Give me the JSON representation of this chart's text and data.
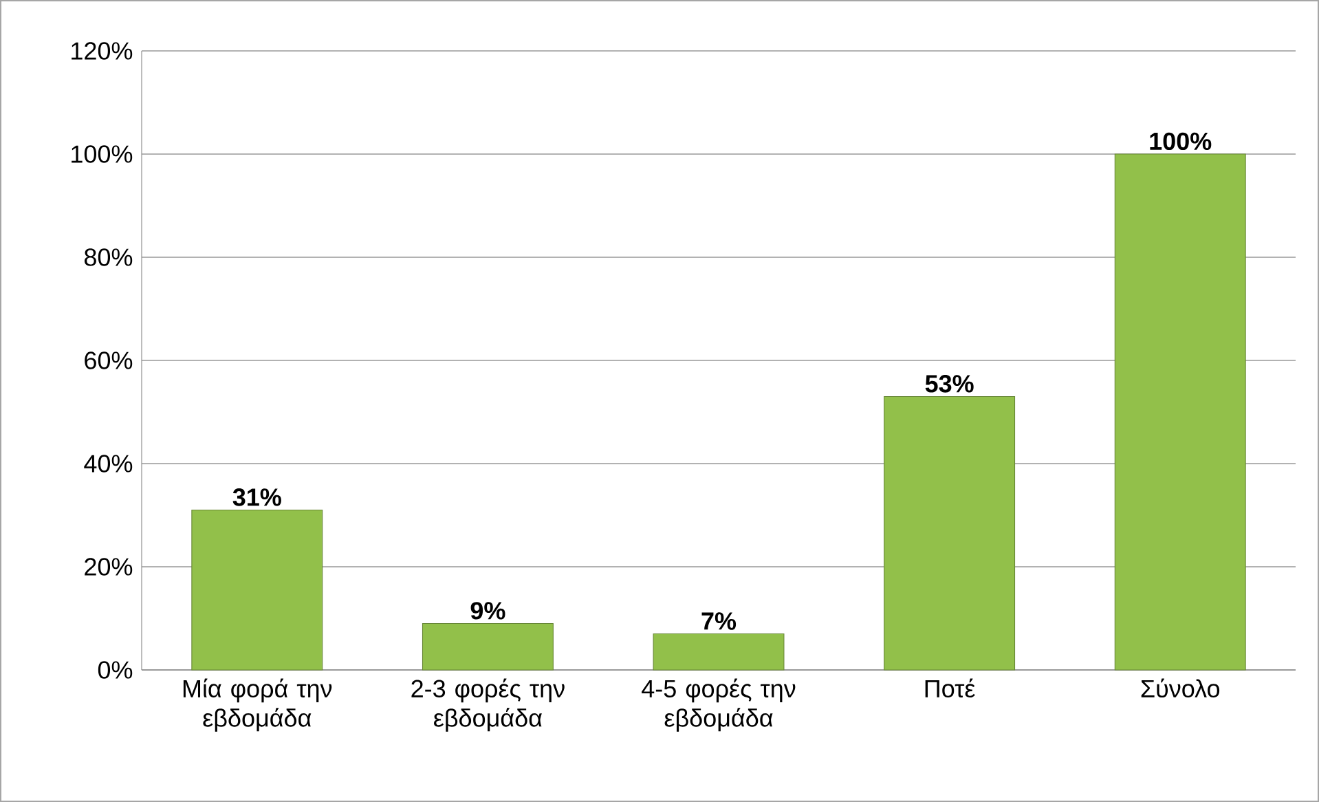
{
  "chart_data": {
    "type": "bar",
    "categories": [
      "Μία φορά την εβδομάδα",
      "2-3 φορές την εβδομάδα",
      "4-5 φορές την εβδομάδα",
      "Ποτέ",
      "Σύνολο"
    ],
    "values": [
      31,
      9,
      7,
      53,
      100
    ],
    "value_labels": [
      "31%",
      "9%",
      "7%",
      "53%",
      "100%"
    ],
    "color": "#92c04a",
    "ylim": [
      0,
      120
    ],
    "yticks": [
      {
        "value": 0,
        "label": "0%"
      },
      {
        "value": 20,
        "label": "20%"
      },
      {
        "value": 40,
        "label": "40%"
      },
      {
        "value": 60,
        "label": "60%"
      },
      {
        "value": 80,
        "label": "80%"
      },
      {
        "value": 100,
        "label": "100%"
      },
      {
        "value": 120,
        "label": "120%"
      }
    ],
    "grid": "y"
  }
}
